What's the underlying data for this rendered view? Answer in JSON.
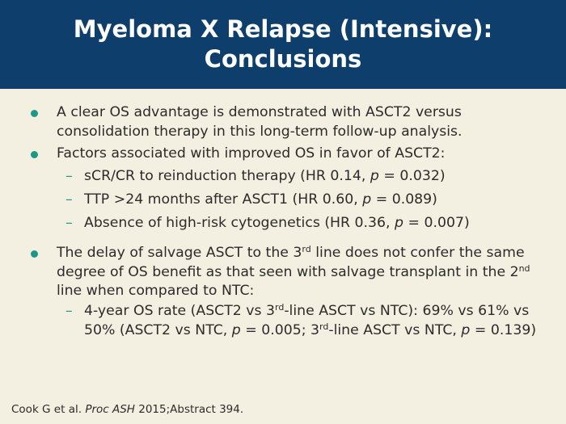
{
  "header": {
    "title": "Myeloma X Relapse (Intensive): Conclusions"
  },
  "bullets": [
    {
      "parts": [
        "A clear OS advantage is demonstrated with ASCT2 versus consolidation therapy in this long-term follow-up analysis."
      ]
    },
    {
      "parts": [
        "Factors associated with improved OS in favor of ASCT2:"
      ],
      "subs": [
        {
          "parts": [
            "sCR/CR to reinduction therapy (HR 0.14, ",
            "p",
            " = 0.032)"
          ]
        },
        {
          "parts": [
            "TTP >24 months after ASCT1 (HR 0.60, ",
            "p",
            " = 0.089)"
          ]
        },
        {
          "parts": [
            "Absence of high-risk cytogenetics (HR 0.36, ",
            "p",
            " = 0.007)"
          ]
        }
      ]
    },
    {
      "parts": [
        "The delay of salvage ASCT to the 3",
        "rd",
        " line does not confer the same degree of OS benefit as that seen with salvage transplant in the 2",
        "nd",
        " line when compared to NTC:"
      ],
      "subs": [
        {
          "parts": [
            "4-year OS rate (ASCT2 vs 3",
            "rd",
            "-line ASCT vs NTC): 69% vs 61% vs 50% (ASCT2 vs NTC, ",
            "p",
            " = 0.005; 3",
            "rd",
            "-line ASCT vs NTC, ",
            "p",
            " = 0.139)"
          ]
        }
      ]
    }
  ],
  "footnote": {
    "parts": [
      "Cook G et al. ",
      "Proc ASH",
      " 2015;Abstract 394."
    ]
  }
}
